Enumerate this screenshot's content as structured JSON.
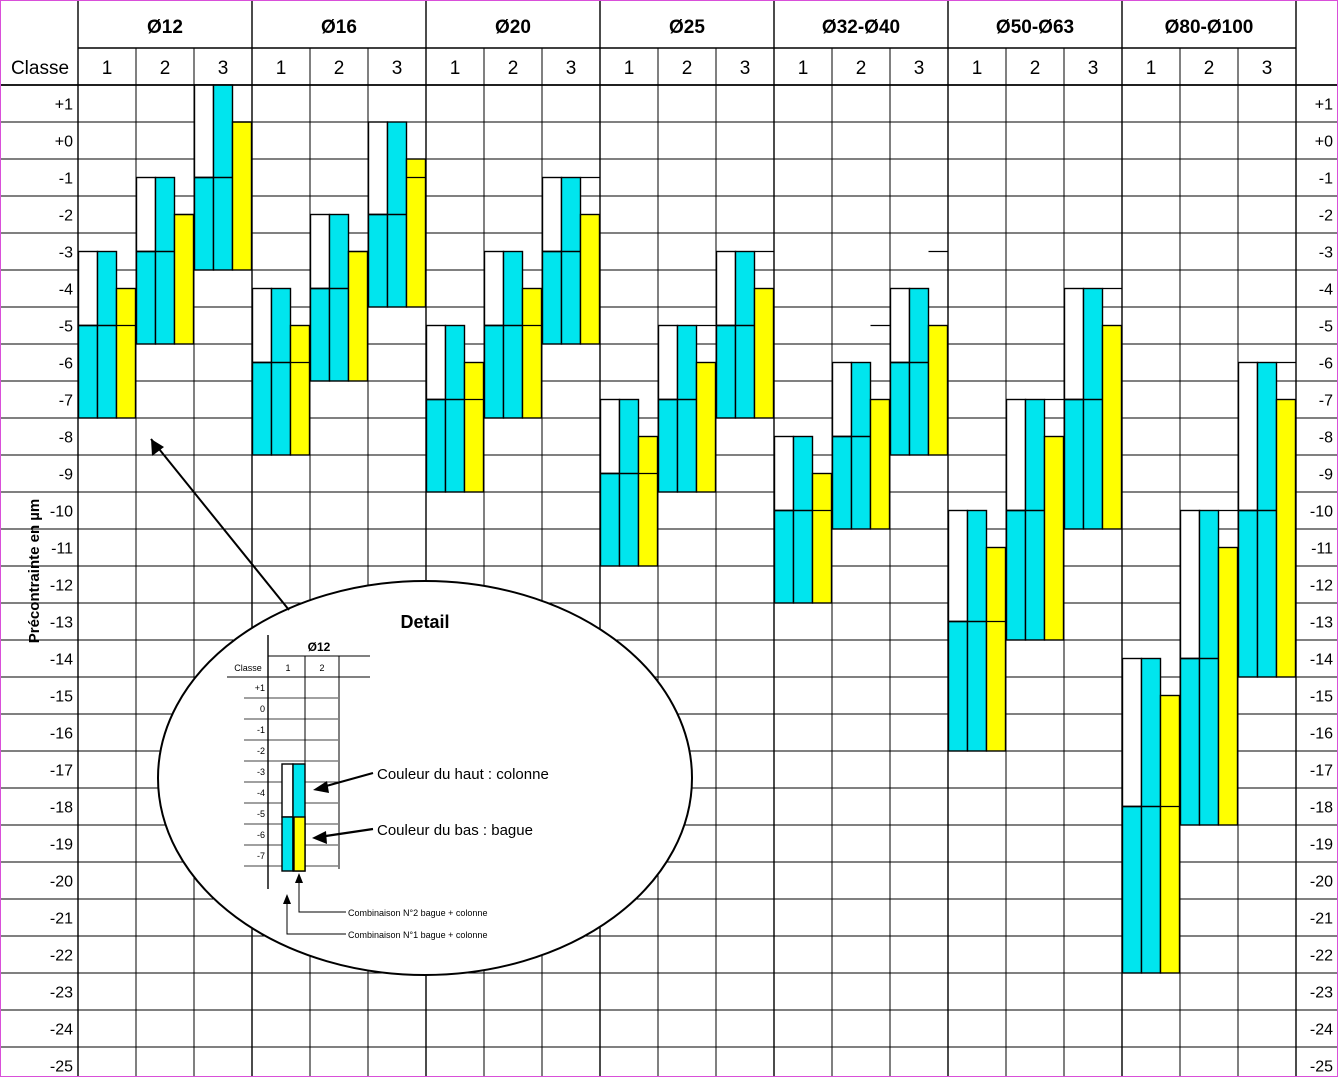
{
  "diagram": {
    "y_axis_label": "Précontrainte en µm",
    "row_header_label": "Classe",
    "y_ticks": [
      "+1",
      "+0",
      "-1",
      "-2",
      "-3",
      "-4",
      "-5",
      "-6",
      "-7",
      "-8",
      "-9",
      "-10",
      "-11",
      "-12",
      "-13",
      "-14",
      "-15",
      "-16",
      "-17",
      "-18",
      "-19",
      "-20",
      "-21",
      "-22",
      "-23",
      "-24",
      "-25"
    ],
    "colors": {
      "white": "#ffffff",
      "cyan": "#00e5ee",
      "yellow": "#ffff00",
      "grid": "#000000",
      "border": "#d94fd9"
    },
    "groups": [
      {
        "label": "Ø12",
        "classes": [
          "1",
          "2",
          "3"
        ],
        "columns": [
          {
            "top": -3,
            "split": -5,
            "bottom": -7.5,
            "right_split": -5
          },
          {
            "top": -1,
            "split": -3,
            "bottom": -5.5,
            "right_split": -2
          },
          {
            "top": 1.5,
            "split": -1,
            "bottom": -3.5,
            "right_split": 0.5
          }
        ]
      },
      {
        "label": "Ø16",
        "classes": [
          "1",
          "2",
          "3"
        ],
        "columns": [
          {
            "top": -4,
            "split": -6,
            "bottom": -8.5,
            "right_split": -6
          },
          {
            "top": -2,
            "split": -4,
            "bottom": -6.5,
            "right_split": -3
          },
          {
            "top": 0.5,
            "split": -2,
            "bottom": -4.5,
            "right_split": -1
          }
        ]
      },
      {
        "label": "Ø20",
        "classes": [
          "1",
          "2",
          "3"
        ],
        "columns": [
          {
            "top": -5,
            "split": -7,
            "bottom": -9.5,
            "right_split": -7
          },
          {
            "top": -3,
            "split": -5,
            "bottom": -7.5,
            "right_split": -5
          },
          {
            "top": -1,
            "split": -3,
            "bottom": -5.5,
            "right_split": -1
          }
        ]
      },
      {
        "label": "Ø25",
        "classes": [
          "1",
          "2",
          "3"
        ],
        "columns": [
          {
            "top": -7,
            "split": -9,
            "bottom": -11.5,
            "right_split": -9
          },
          {
            "top": -5,
            "split": -7,
            "bottom": -9.5,
            "right_split": -5
          },
          {
            "top": -3,
            "split": -5,
            "bottom": -7.5,
            "right_split": -3
          }
        ]
      },
      {
        "label": "Ø32-Ø40",
        "classes": [
          "1",
          "2",
          "3"
        ],
        "columns": [
          {
            "top": -8,
            "split": -10,
            "bottom": -12.5,
            "right_split": -10
          },
          {
            "top": -6,
            "split": -8,
            "bottom": -10.5,
            "right_split": -5
          },
          {
            "top": -4,
            "split": -6,
            "bottom": -8.5,
            "right_split": -3
          }
        ]
      },
      {
        "label": "Ø50-Ø63",
        "classes": [
          "1",
          "2",
          "3"
        ],
        "columns": [
          {
            "top": -10,
            "split": -13,
            "bottom": -16.5,
            "right_split": -13
          },
          {
            "top": -7,
            "split": -10,
            "bottom": -13.5,
            "right_split": -7
          },
          {
            "top": -4,
            "split": -7,
            "bottom": -10.5,
            "right_split": -4
          }
        ]
      },
      {
        "label": "Ø80-Ø100",
        "classes": [
          "1",
          "2",
          "3"
        ],
        "columns": [
          {
            "top": -14,
            "split": -18,
            "bottom": -22.5,
            "right_split": -18
          },
          {
            "top": -10,
            "split": -14,
            "bottom": -18.5,
            "right_split": -10
          },
          {
            "top": -6,
            "split": -10,
            "bottom": -14.5,
            "right_split": -6
          }
        ]
      }
    ],
    "detail": {
      "title": "Detail",
      "mini_group_label": "Ø12",
      "mini_row_label": "Classe",
      "mini_classes": [
        "1",
        "2"
      ],
      "mini_ticks": [
        "+1",
        "0",
        "-1",
        "-2",
        "-3",
        "-4",
        "-5",
        "-6",
        "-7"
      ],
      "callout_top": "Couleur du haut : colonne",
      "callout_bottom": "Couleur du bas : bague",
      "combo_2": "Combinaison N°2 bague + colonne",
      "combo_1": "Combinaison N°1 bague + colonne"
    }
  }
}
